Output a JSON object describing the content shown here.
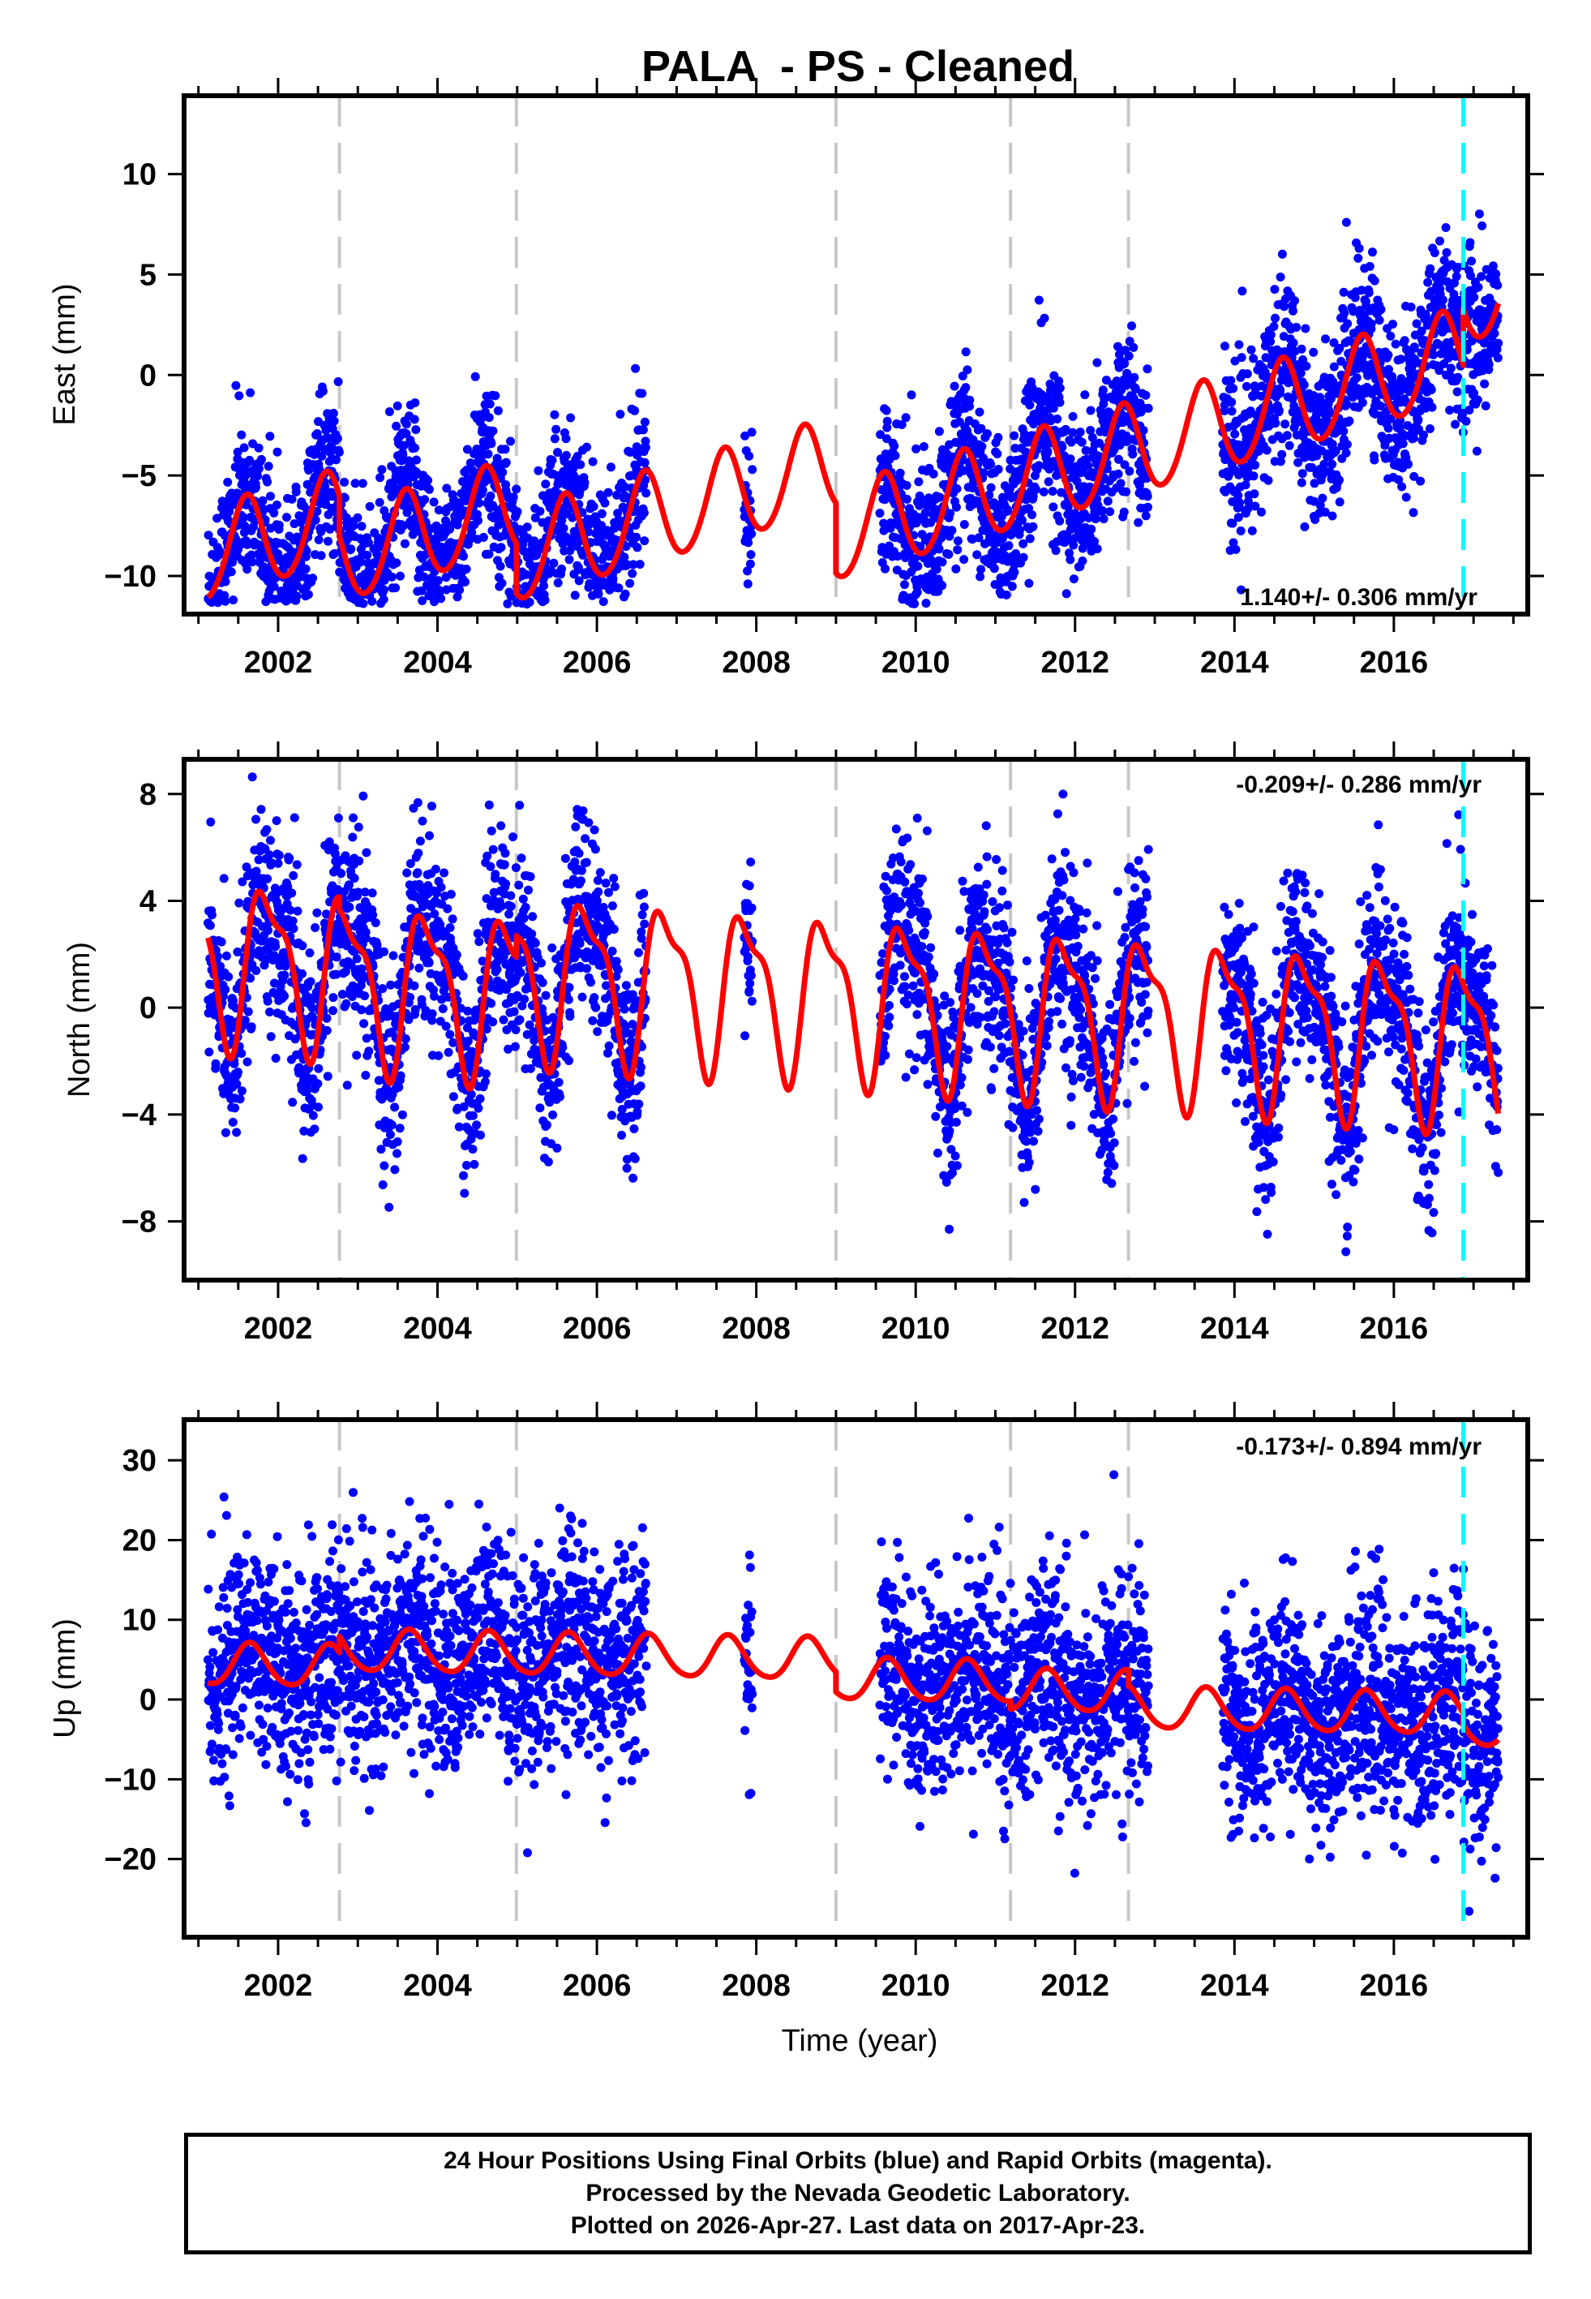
{
  "chart_data": {
    "type": "scatter",
    "title": "PALA  - PS - Cleaned",
    "xlabel": "Time (year)",
    "xlim": [
      2000.82,
      2017.68
    ],
    "x_ticks": [
      "2002",
      "2004",
      "2006",
      "2008",
      "2010",
      "2012",
      "2014",
      "2016"
    ],
    "x_tick_values": [
      2002,
      2004,
      2006,
      2008,
      2010,
      2012,
      2014,
      2016
    ],
    "x_minor_tick_step": 0.5,
    "equipment_change_lines": {
      "color": "#c8c8c8",
      "years": [
        2002.77,
        2004.99,
        2009.0,
        2011.19,
        2012.67
      ]
    },
    "earthquake_lines": {
      "color": "#00ffff",
      "years": [
        2016.87
      ]
    },
    "data_color": "#0000ff",
    "model_color": "#ff0000",
    "data_periods": [
      [
        2001.12,
        2006.62
      ],
      [
        2007.85,
        2007.95
      ],
      [
        2009.55,
        2012.92
      ],
      [
        2013.85,
        2017.31
      ]
    ],
    "panels": [
      {
        "name": "east",
        "ylabel": "East (mm)",
        "ylim": [
          -11.9,
          13.9
        ],
        "y_ticks": [
          "10",
          "5",
          "0",
          "−5",
          "−10"
        ],
        "y_tick_values": [
          10,
          5,
          0,
          -5,
          -10
        ],
        "rate_text": "1.140+/- 0.306 mm/yr",
        "rate_position": "bottom-right",
        "model": {
          "rate": 1.14,
          "t0": 2009.0,
          "intercept": 0.0,
          "annual_amp": 2.3,
          "annual_phase": 0.35,
          "semiannual_amp": 0.2,
          "semiannual_phase": 0.0,
          "offsets": [
            [
              2002.77,
              -2.0
            ],
            [
              2004.99,
              -2.5
            ],
            [
              2009.0,
              -3.5
            ],
            [
              2011.19,
              0.0
            ],
            [
              2012.67,
              0.0
            ],
            [
              2016.87,
              2.8
            ]
          ]
        },
        "noise_sd": 2.0
      },
      {
        "name": "north",
        "ylabel": "North (mm)",
        "ylim": [
          -10.2,
          9.3
        ],
        "y_ticks": [
          "8",
          "4",
          "0",
          "−4",
          "−8"
        ],
        "y_tick_values": [
          8,
          4,
          0,
          -4,
          -8
        ],
        "rate_text": "-0.209+/- 0.286 mm/yr",
        "rate_position": "top-right",
        "model": {
          "rate": -0.209,
          "t0": 2009.0,
          "intercept": 0.2,
          "annual_amp": 2.8,
          "annual_phase": 0.62,
          "semiannual_amp": 1.0,
          "semiannual_phase": 0.55,
          "offsets": [
            [
              2002.77,
              -0.5
            ],
            [
              2004.99,
              0.8
            ],
            [
              2009.0,
              0.0
            ],
            [
              2011.19,
              0.0
            ],
            [
              2012.67,
              0.0
            ],
            [
              2016.87,
              0.0
            ]
          ]
        },
        "noise_sd": 1.8
      },
      {
        "name": "up",
        "ylabel": "Up (mm)",
        "ylim": [
          -29.8,
          35.1
        ],
        "y_ticks": [
          "30",
          "20",
          "10",
          "0",
          "−10",
          "−20"
        ],
        "y_tick_values": [
          30,
          20,
          10,
          0,
          -10,
          -20
        ],
        "rate_text": "-0.173+/- 0.894 mm/yr",
        "rate_position": "top-right",
        "model": {
          "rate": -0.173,
          "t0": 2009.0,
          "intercept": 3.0,
          "annual_amp": 2.6,
          "annual_phase": 0.4,
          "semiannual_amp": 0.3,
          "semiannual_phase": 0.0,
          "offsets": [
            [
              2002.77,
              2.0
            ],
            [
              2004.99,
              0.0
            ],
            [
              2009.0,
              -2.5
            ],
            [
              2011.19,
              -1.0
            ],
            [
              2012.67,
              -2.0
            ],
            [
              2016.87,
              -1.5
            ]
          ]
        },
        "noise_sd": 6.5
      }
    ]
  },
  "footer": {
    "line1": "24 Hour Positions Using Final Orbits (blue) and Rapid Orbits (magenta).",
    "line2": "Processed by the Nevada Geodetic Laboratory.",
    "line3": "Plotted on 2026-Apr-27. Last data on 2017-Apr-23."
  }
}
